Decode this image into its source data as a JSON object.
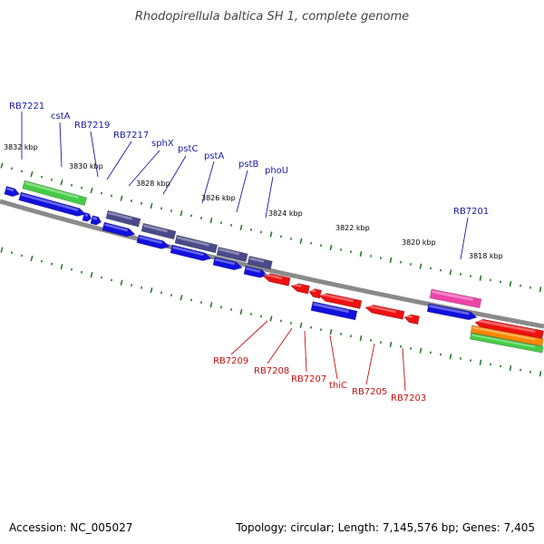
{
  "title": "Rhodopirellula baltica SH 1, complete genome",
  "footer": {
    "accession": "Accession: NC_005027",
    "summary": "Topology: circular; Length: 7,145,576 bp; Genes: 7,405"
  },
  "scale_labels": [
    "3832 kbp",
    "3830 kbp",
    "3828 kbp",
    "3826 kbp",
    "3824 kbp",
    "3822 kbp",
    "3820 kbp",
    "3818 kbp"
  ],
  "genes_forward": [
    "RB7221",
    "cstA",
    "RB7219",
    "RB7217",
    "sphX",
    "pstC",
    "pstA",
    "pstB",
    "phoU",
    "RB7201"
  ],
  "genes_reverse": [
    "RB7209",
    "RB7208",
    "RB7207",
    "thiC",
    "RB7205",
    "RB7203"
  ],
  "colors": {
    "backbone": "#8a8a8a",
    "tick": "#2a7a2a",
    "cds_forward": "#1111dd",
    "cds_reverse": "#ee1111",
    "cog_green": "#44cc44",
    "cog_slate": "#4a4a8a",
    "cog_pink": "#ee44aa",
    "cog_orange": "#ff8800",
    "label_forward": "#1a1aa0",
    "label_reverse": "#c81010"
  }
}
